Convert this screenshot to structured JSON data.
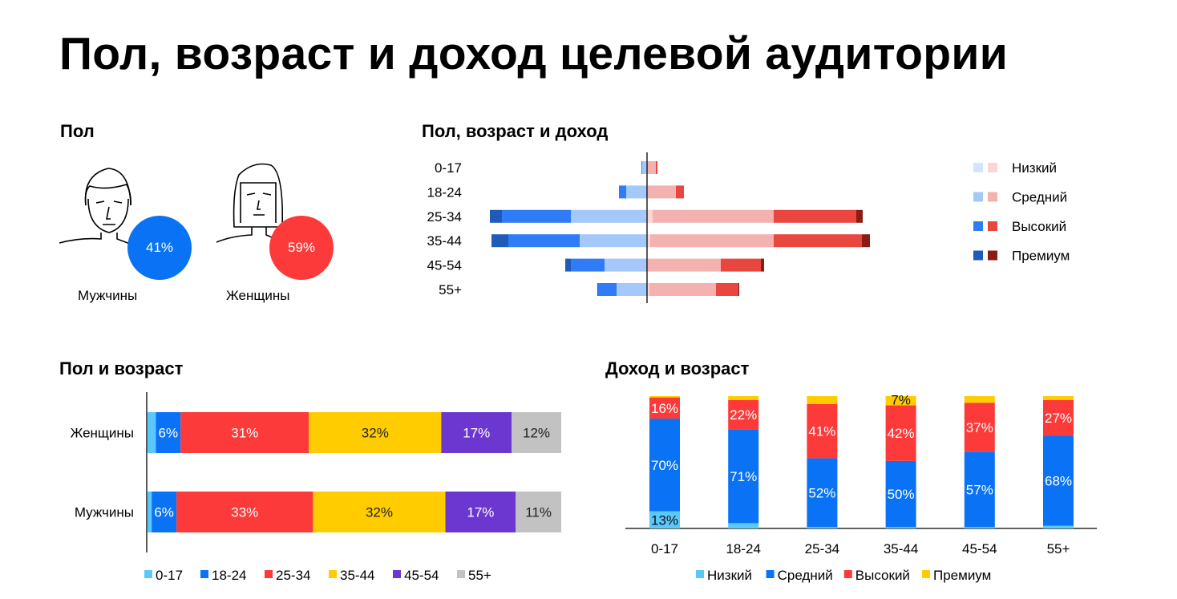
{
  "title": "Пол, возраст и доход целевой аудитории",
  "gender": {
    "heading": "Пол",
    "male": {
      "label": "Мужчины",
      "value": "41%",
      "color": "#0a73f5"
    },
    "female": {
      "label": "Женщины",
      "value": "59%",
      "color": "#fc3a3a"
    }
  },
  "chart_data": [
    {
      "type": "bar",
      "title": "Пол, возраст и доход",
      "orientation": "horizontal-pyramid",
      "categories": [
        "0-17",
        "18-24",
        "25-34",
        "35-44",
        "45-54",
        "55+"
      ],
      "legend": [
        "Низкий",
        "Средний",
        "Высокий",
        "Премиум"
      ],
      "legend_position": "right",
      "colors": {
        "male": [
          "#d3e5fd",
          "#a4c8fa",
          "#2f7cf6",
          "#1f5bb8"
        ],
        "female": [
          "#fad6d5",
          "#f3b1b0",
          "#ea4640",
          "#8b1c14"
        ]
      },
      "male": [
        [
          1,
          5,
          1,
          0
        ],
        [
          0,
          26,
          9,
          0
        ],
        [
          1,
          94,
          86,
          15
        ],
        [
          1,
          83,
          89,
          21
        ],
        [
          0,
          53,
          42,
          7
        ],
        [
          0,
          38,
          23,
          1
        ]
      ],
      "female": [
        [
          0,
          11,
          2,
          0
        ],
        [
          1,
          35,
          10,
          0
        ],
        [
          7,
          151,
          103,
          8
        ],
        [
          4,
          154,
          110,
          10
        ],
        [
          1,
          91,
          50,
          4
        ],
        [
          3,
          83,
          28,
          1
        ]
      ]
    },
    {
      "type": "bar",
      "stacked": true,
      "orientation": "horizontal",
      "title": "Пол и возраст",
      "categories": [
        "Женщины",
        "Мужчины"
      ],
      "legend_position": "bottom",
      "series": [
        {
          "name": "0-17",
          "color": "#5ac8fa",
          "values": [
            2,
            1
          ],
          "labels": [
            "",
            ""
          ]
        },
        {
          "name": "18-24",
          "color": "#0a73f5",
          "values": [
            6,
            6
          ],
          "labels": [
            "6%",
            "6%"
          ]
        },
        {
          "name": "25-34",
          "color": "#fc3a3a",
          "values": [
            31,
            33
          ],
          "labels": [
            "31%",
            "33%"
          ]
        },
        {
          "name": "35-44",
          "color": "#ffcc00",
          "values": [
            32,
            32
          ],
          "labels": [
            "32%",
            "32%"
          ]
        },
        {
          "name": "45-54",
          "color": "#6c37d0",
          "values": [
            17,
            17
          ],
          "labels": [
            "17%",
            "17%"
          ]
        },
        {
          "name": "55+",
          "color": "#c2c2c2",
          "values": [
            12,
            11
          ],
          "labels": [
            "12%",
            "11%"
          ]
        }
      ]
    },
    {
      "type": "bar",
      "stacked": true,
      "orientation": "vertical",
      "title": "Доход и возраст",
      "categories": [
        "0-17",
        "18-24",
        "25-34",
        "35-44",
        "45-54",
        "55+"
      ],
      "legend_position": "bottom",
      "series": [
        {
          "name": "Низкий",
          "color": "#5ac8fa",
          "values": [
            13,
            4,
            1,
            1,
            1,
            2
          ],
          "labels": [
            "13%",
            "",
            "",
            "",
            "",
            ""
          ]
        },
        {
          "name": "Средний",
          "color": "#0a73f5",
          "values": [
            70,
            71,
            52,
            50,
            57,
            68
          ],
          "labels": [
            "70%",
            "71%",
            "52%",
            "50%",
            "57%",
            "68%"
          ]
        },
        {
          "name": "Высокий",
          "color": "#fc3a3a",
          "values": [
            16,
            22,
            41,
            42,
            37,
            27
          ],
          "labels": [
            "16%",
            "22%",
            "41%",
            "42%",
            "37%",
            "27%"
          ]
        },
        {
          "name": "Премиум",
          "color": "#ffcc00",
          "values": [
            1,
            3,
            6,
            7,
            5,
            3
          ],
          "labels": [
            "",
            "",
            "",
            "7%",
            "",
            ""
          ]
        }
      ]
    }
  ]
}
